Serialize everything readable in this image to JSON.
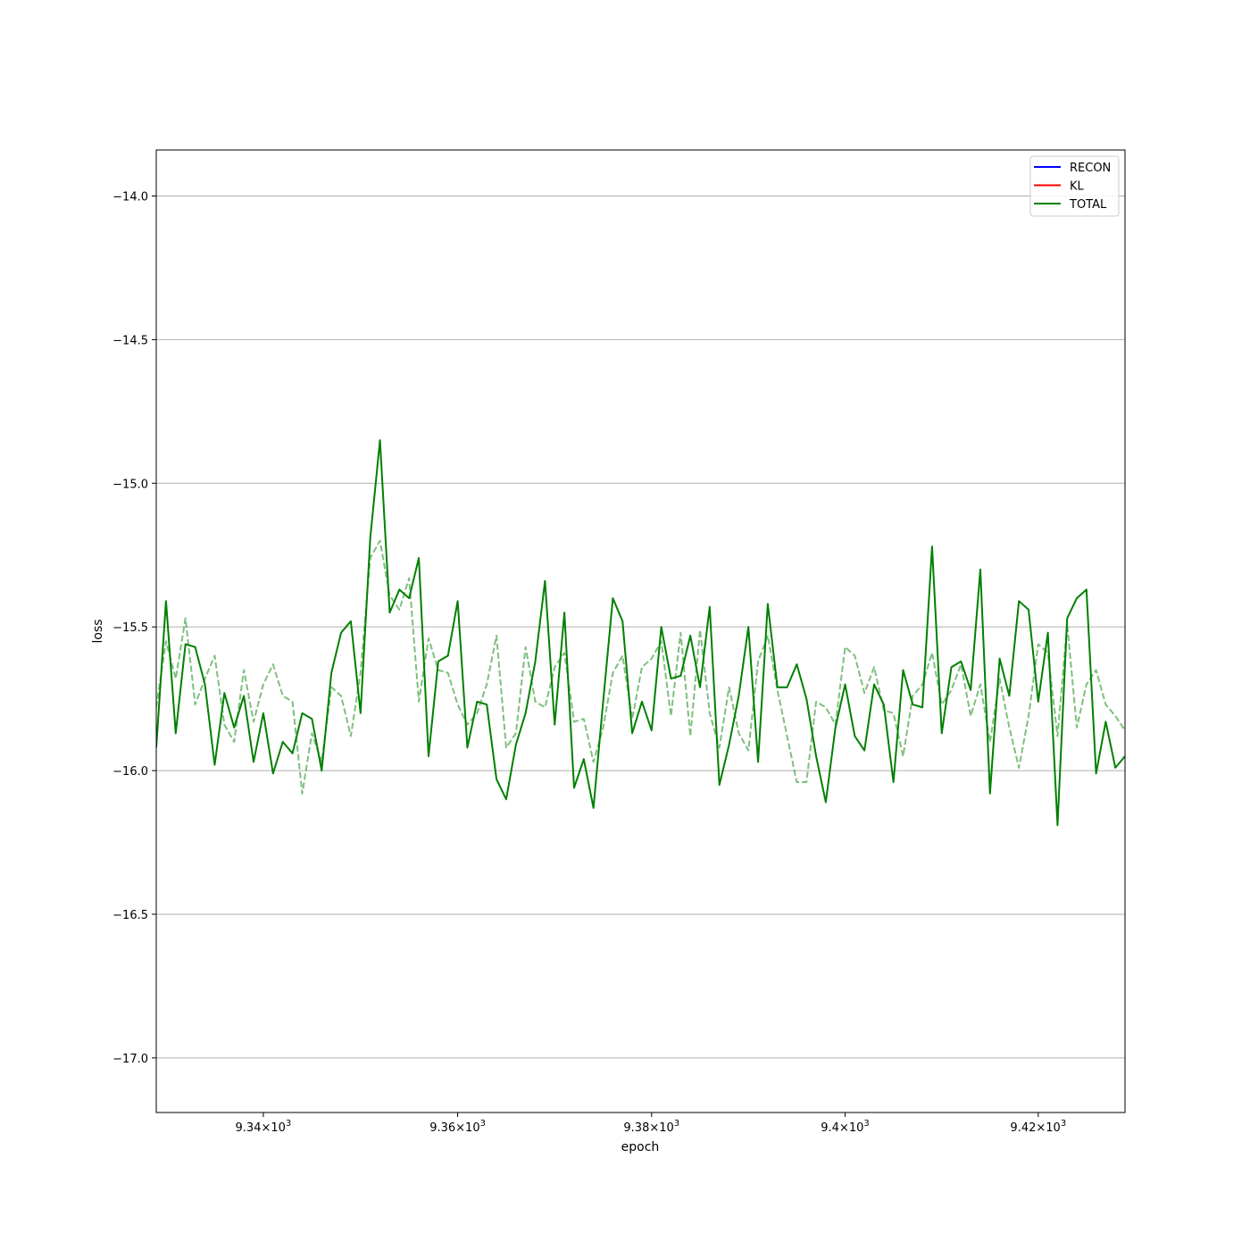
{
  "chart_data": {
    "type": "line",
    "xlabel": "epoch",
    "ylabel": "loss",
    "xscale": "log",
    "xlim": [
      9329,
      9429
    ],
    "ylim": [
      -17.19,
      -13.84
    ],
    "grid": "y-major",
    "legend_position": "top-right",
    "x_ticks": [
      {
        "value": 9340,
        "mantissa": "9.34",
        "base": "10",
        "exp": "3"
      },
      {
        "value": 9360,
        "mantissa": "9.36",
        "base": "10",
        "exp": "3"
      },
      {
        "value": 9380,
        "mantissa": "9.38",
        "base": "10",
        "exp": "3"
      },
      {
        "value": 9400,
        "mantissa": "9.4",
        "base": "10",
        "exp": "3"
      },
      {
        "value": 9420,
        "mantissa": "9.42",
        "base": "10",
        "exp": "3"
      }
    ],
    "y_ticks": [
      {
        "value": -14.0,
        "label": "−14.0"
      },
      {
        "value": -14.5,
        "label": "−14.5"
      },
      {
        "value": -15.0,
        "label": "−15.0"
      },
      {
        "value": -15.5,
        "label": "−15.5"
      },
      {
        "value": -16.0,
        "label": "−16.0"
      },
      {
        "value": -16.5,
        "label": "−16.5"
      },
      {
        "value": -17.0,
        "label": "−17.0"
      }
    ],
    "legend": [
      {
        "name": "RECON",
        "color": "#0000ff"
      },
      {
        "name": "KL",
        "color": "#ff0000"
      },
      {
        "name": "TOTAL",
        "color": "#008000"
      }
    ],
    "series": [
      {
        "name": "TOTAL",
        "color": "#008000",
        "style": "solid",
        "x_start": 9329,
        "x_step": 1,
        "values": [
          -15.92,
          -15.41,
          -15.87,
          -15.56,
          -15.57,
          -15.7,
          -15.98,
          -15.73,
          -15.85,
          -15.74,
          -15.97,
          -15.8,
          -16.01,
          -15.9,
          -15.94,
          -15.8,
          -15.82,
          -16.0,
          -15.66,
          -15.52,
          -15.48,
          -15.8,
          -15.19,
          -14.85,
          -15.45,
          -15.37,
          -15.4,
          -15.26,
          -15.95,
          -15.62,
          -15.6,
          -15.41,
          -15.92,
          -15.76,
          -15.77,
          -16.03,
          -16.1,
          -15.91,
          -15.8,
          -15.62,
          -15.34,
          -15.84,
          -15.45,
          -16.06,
          -15.96,
          -16.13,
          -15.76,
          -15.4,
          -15.48,
          -15.87,
          -15.76,
          -15.86,
          -15.5,
          -15.68,
          -15.67,
          -15.53,
          -15.71,
          -15.43,
          -16.05,
          -15.91,
          -15.74,
          -15.5,
          -15.97,
          -15.42,
          -15.71,
          -15.71,
          -15.63,
          -15.75,
          -15.95,
          -16.11,
          -15.85,
          -15.7,
          -15.88,
          -15.93,
          -15.7,
          -15.77,
          -16.04,
          -15.65,
          -15.77,
          -15.78,
          -15.22,
          -15.87,
          -15.64,
          -15.62,
          -15.72,
          -15.3,
          -16.08,
          -15.61,
          -15.74,
          -15.41,
          -15.44,
          -15.76,
          -15.52,
          -16.19,
          -15.47,
          -15.4,
          -15.37,
          -16.01,
          -15.83,
          -15.99,
          -15.95
        ]
      },
      {
        "name": "",
        "color": "#008000",
        "style": "dashed",
        "opacity": 0.5,
        "x_start": 9329,
        "x_step": 1,
        "values": [
          -15.78,
          -15.55,
          -15.68,
          -15.47,
          -15.77,
          -15.68,
          -15.6,
          -15.84,
          -15.9,
          -15.65,
          -15.83,
          -15.7,
          -15.63,
          -15.74,
          -15.76,
          -16.08,
          -15.87,
          -15.97,
          -15.71,
          -15.74,
          -15.88,
          -15.66,
          -15.26,
          -15.2,
          -15.39,
          -15.44,
          -15.33,
          -15.76,
          -15.54,
          -15.65,
          -15.66,
          -15.77,
          -15.84,
          -15.8,
          -15.7,
          -15.53,
          -15.92,
          -15.87,
          -15.57,
          -15.76,
          -15.78,
          -15.64,
          -15.59,
          -15.83,
          -15.82,
          -15.97,
          -15.85,
          -15.66,
          -15.6,
          -15.82,
          -15.64,
          -15.61,
          -15.55,
          -15.81,
          -15.52,
          -15.88,
          -15.51,
          -15.8,
          -15.92,
          -15.71,
          -15.87,
          -15.93,
          -15.62,
          -15.53,
          -15.72,
          -15.88,
          -16.04,
          -16.04,
          -15.76,
          -15.78,
          -15.84,
          -15.57,
          -15.6,
          -15.73,
          -15.64,
          -15.79,
          -15.8,
          -15.95,
          -15.74,
          -15.7,
          -15.59,
          -15.77,
          -15.72,
          -15.63,
          -15.81,
          -15.7,
          -15.9,
          -15.68,
          -15.85,
          -15.99,
          -15.81,
          -15.56,
          -15.59,
          -15.88,
          -15.49,
          -15.85,
          -15.7,
          -15.65,
          -15.77,
          -15.81,
          -15.86
        ]
      }
    ]
  }
}
